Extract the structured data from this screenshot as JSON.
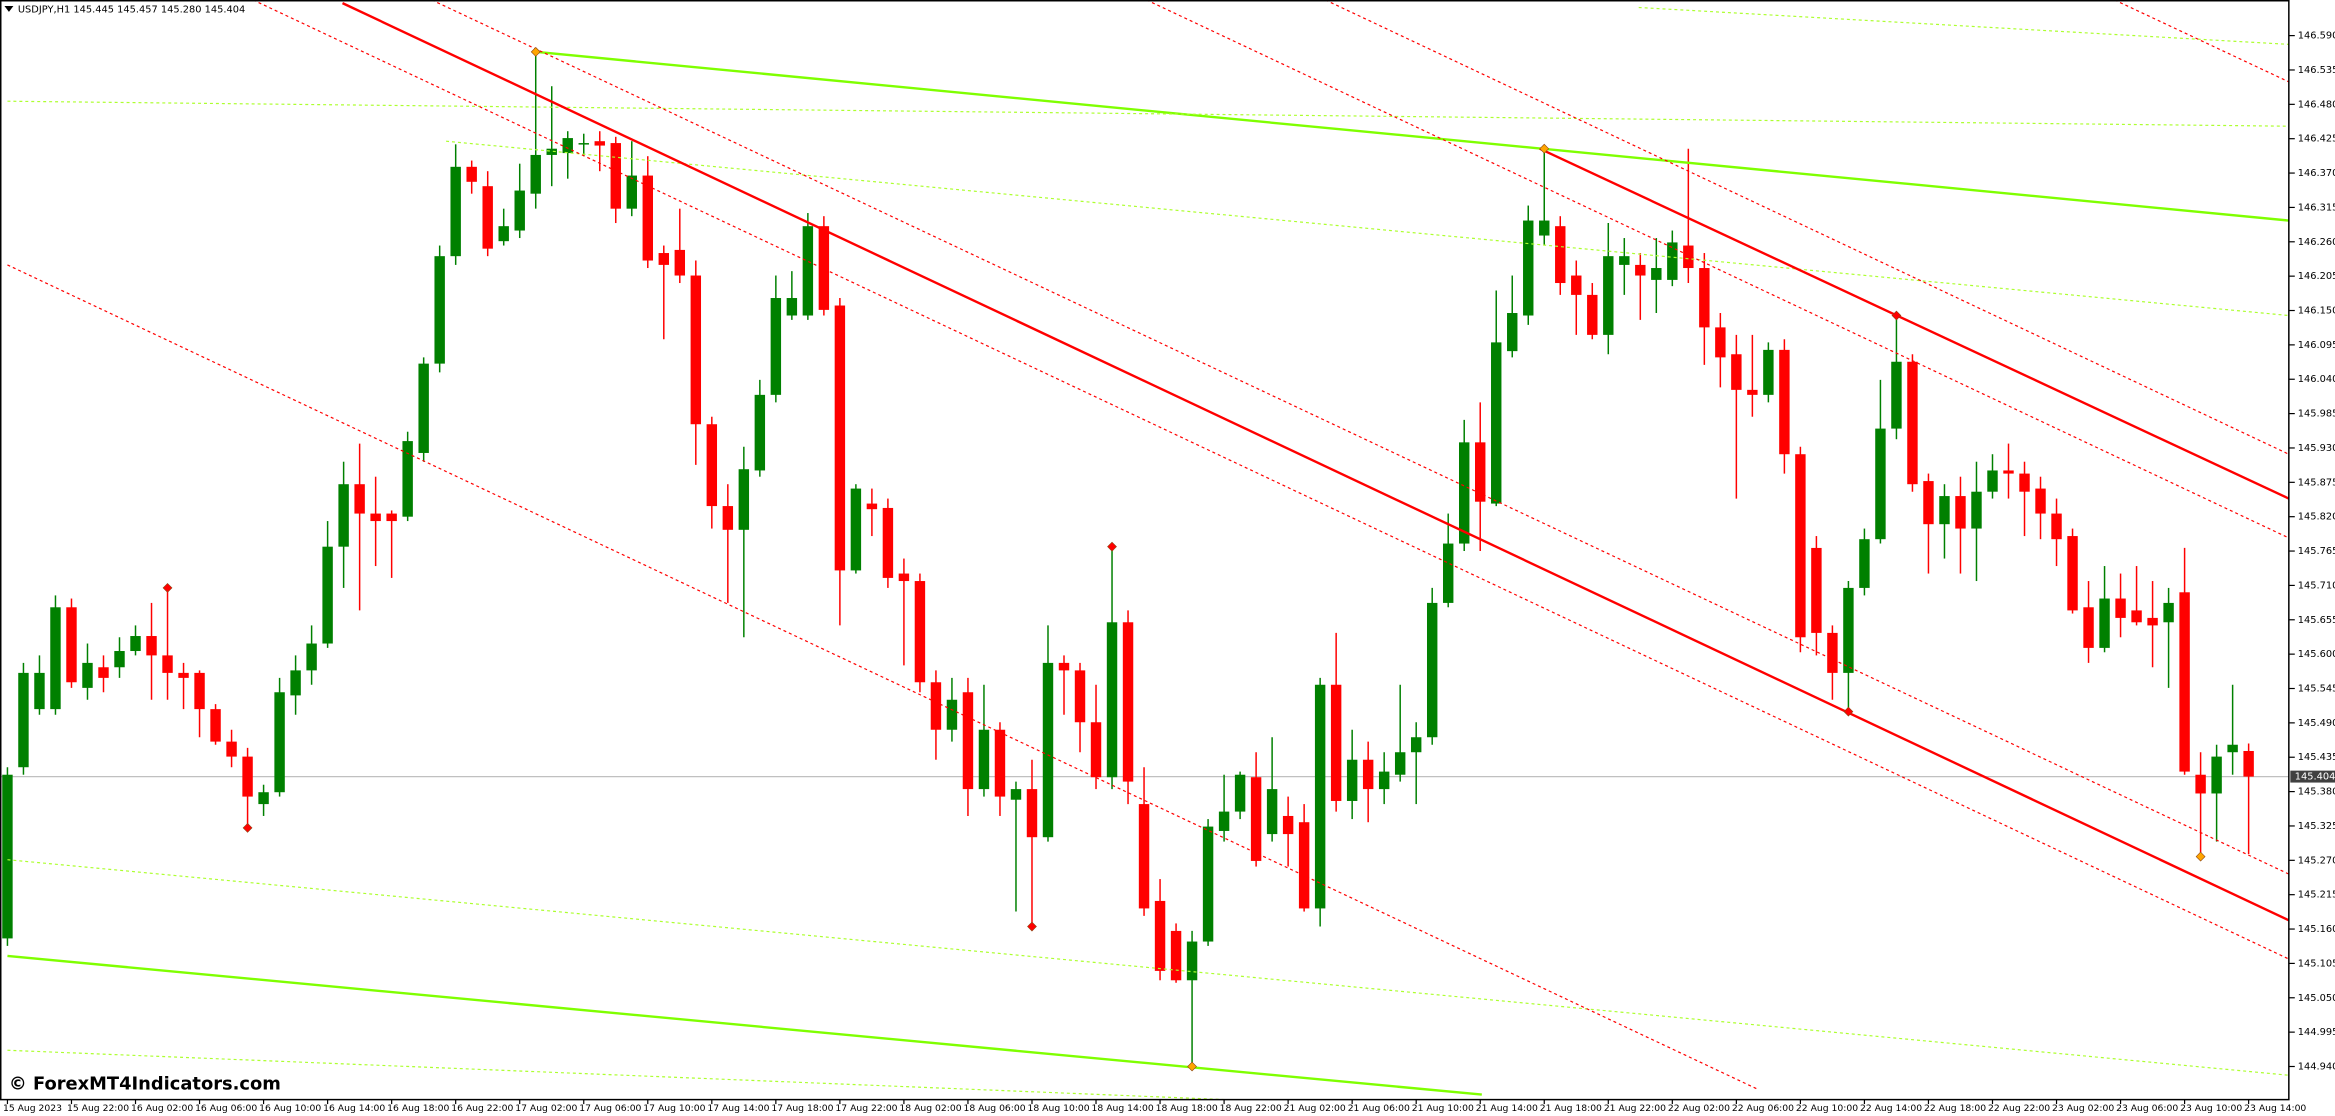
{
  "chart_data": {
    "type": "candlestick",
    "title": "USDJPY,H1 145.445 145.457 145.280 145.404",
    "watermark": "© ForexMT4Indicators.com",
    "up_color": "#008000",
    "down_color": "#ff0000",
    "current_price": 145.404,
    "ylim": [
      144.887,
      146.647
    ],
    "yticks": [
      {
        "value": 146.59,
        "label": "146.590"
      },
      146.535,
      {
        "value": 146.48,
        "label": "146.480"
      },
      146.425,
      {
        "value": 146.37,
        "label": "146.370"
      },
      146.315,
      {
        "value": 146.26,
        "label": "146.260"
      },
      146.205,
      {
        "value": 146.15,
        "label": "146.150"
      },
      146.095,
      {
        "value": 146.04,
        "label": "146.040"
      },
      145.985,
      {
        "value": 145.93,
        "label": "145.930"
      },
      145.875,
      {
        "value": 145.82,
        "label": "145.820"
      },
      145.765,
      {
        "value": 145.71,
        "label": "145.710"
      },
      145.655,
      {
        "value": 145.6,
        "label": "145.600"
      },
      145.545,
      {
        "value": 145.49,
        "label": "145.490"
      },
      145.435,
      {
        "value": 145.38,
        "label": "145.380"
      },
      145.325,
      {
        "value": 145.27,
        "label": "145.270"
      },
      145.215,
      {
        "value": 145.16,
        "label": "145.160"
      },
      145.105,
      {
        "value": 145.05,
        "label": "145.050"
      },
      144.995,
      {
        "value": 144.94,
        "label": "144.940"
      }
    ],
    "categories": [
      "15 Aug 2023",
      null,
      null,
      null,
      "15 Aug 22:00",
      null,
      null,
      null,
      "16 Aug 02:00",
      null,
      null,
      null,
      "16 Aug 06:00",
      null,
      null,
      null,
      "16 Aug 10:00",
      null,
      null,
      null,
      "16 Aug 14:00",
      null,
      null,
      null,
      "16 Aug 18:00",
      null,
      null,
      null,
      "16 Aug 22:00",
      null,
      null,
      null,
      "17 Aug 02:00",
      null,
      null,
      null,
      "17 Aug 06:00",
      null,
      null,
      null,
      "17 Aug 10:00",
      null,
      null,
      null,
      "17 Aug 14:00",
      null,
      null,
      null,
      "17 Aug 18:00",
      null,
      null,
      null,
      "17 Aug 22:00",
      null,
      null,
      null,
      "18 Aug 02:00",
      null,
      null,
      null,
      "18 Aug 06:00",
      null,
      null,
      null,
      "18 Aug 10:00",
      null,
      null,
      null,
      "18 Aug 14:00",
      null,
      null,
      null,
      "18 Aug 18:00",
      null,
      null,
      null,
      "18 Aug 22:00",
      null,
      null,
      null,
      "21 Aug 02:00",
      null,
      null,
      null,
      "21 Aug 06:00",
      null,
      null,
      null,
      "21 Aug 10:00",
      null,
      null,
      null,
      "21 Aug 14:00",
      null,
      null,
      null,
      "21 Aug 18:00",
      null,
      null,
      null,
      "21 Aug 22:00",
      null,
      null,
      null,
      "22 Aug 02:00",
      null,
      null,
      null,
      "22 Aug 06:00",
      null,
      null,
      null,
      "22 Aug 10:00",
      null,
      null,
      null,
      "22 Aug 14:00",
      null,
      null,
      null,
      "22 Aug 18:00",
      null,
      null,
      null,
      "22 Aug 22:00",
      null,
      null,
      null,
      "23 Aug 02:00",
      null,
      null,
      null,
      "23 Aug 06:00",
      null,
      null,
      null,
      "23 Aug 10:00",
      null,
      null,
      null,
      "23 Aug 14:00"
    ],
    "ohlc": [
      [
        145.145,
        145.419,
        145.133,
        145.407
      ],
      [
        145.419,
        145.586,
        145.407,
        145.57
      ],
      [
        145.512,
        145.598,
        145.503,
        145.57
      ],
      [
        145.512,
        145.694,
        145.503,
        145.675
      ],
      [
        145.675,
        145.689,
        145.546,
        145.555
      ],
      [
        145.546,
        145.617,
        145.527,
        145.586
      ],
      [
        145.579,
        145.598,
        145.539,
        145.562
      ],
      [
        145.579,
        145.627,
        145.562,
        145.605
      ],
      [
        145.605,
        145.646,
        145.598,
        145.629
      ],
      [
        145.629,
        145.682,
        145.527,
        145.598
      ],
      [
        145.598,
        145.706,
        145.527,
        145.57
      ],
      [
        145.57,
        145.586,
        145.512,
        145.562
      ],
      [
        145.57,
        145.574,
        145.467,
        145.512
      ],
      [
        145.512,
        145.52,
        145.455,
        145.46
      ],
      [
        145.46,
        145.479,
        145.419,
        145.436
      ],
      [
        145.436,
        145.45,
        145.322,
        145.372
      ],
      [
        145.36,
        145.391,
        145.341,
        145.379
      ],
      [
        145.379,
        145.562,
        145.372,
        145.539
      ],
      [
        145.534,
        145.598,
        145.503,
        145.574
      ],
      [
        145.574,
        145.646,
        145.551,
        145.617
      ],
      [
        145.617,
        145.813,
        145.61,
        145.772
      ],
      [
        145.772,
        145.908,
        145.706,
        145.872
      ],
      [
        145.872,
        145.937,
        145.67,
        145.825
      ],
      [
        145.825,
        145.884,
        145.741,
        145.813
      ],
      [
        145.825,
        145.83,
        145.722,
        145.813
      ],
      [
        145.82,
        145.956,
        145.813,
        145.941
      ],
      [
        145.922,
        146.075,
        145.908,
        146.065
      ],
      [
        146.065,
        146.254,
        146.051,
        146.237
      ],
      [
        146.237,
        146.416,
        146.223,
        146.38
      ],
      [
        146.38,
        146.39,
        146.337,
        146.356
      ],
      [
        146.349,
        146.373,
        146.237,
        146.249
      ],
      [
        146.261,
        146.313,
        146.254,
        146.285
      ],
      [
        146.278,
        146.385,
        146.266,
        146.342
      ],
      [
        146.337,
        146.564,
        146.313,
        146.399
      ],
      [
        146.399,
        146.509,
        146.349,
        146.409
      ],
      [
        146.402,
        146.437,
        146.361,
        146.426
      ],
      [
        146.418,
        146.433,
        146.397,
        146.418
      ],
      [
        146.421,
        146.437,
        146.373,
        146.414
      ],
      [
        146.418,
        146.428,
        146.29,
        146.313
      ],
      [
        146.313,
        146.421,
        146.301,
        146.366
      ],
      [
        146.366,
        146.397,
        146.218,
        146.23
      ],
      [
        146.242,
        146.254,
        146.104,
        146.223
      ],
      [
        146.247,
        146.313,
        146.194,
        146.206
      ],
      [
        146.206,
        146.23,
        145.903,
        145.968
      ],
      [
        145.968,
        145.98,
        145.801,
        145.837
      ],
      [
        145.837,
        145.872,
        145.682,
        145.799
      ],
      [
        145.799,
        145.932,
        145.627,
        145.896
      ],
      [
        145.894,
        146.039,
        145.884,
        146.015
      ],
      [
        146.015,
        146.206,
        146.003,
        146.17
      ],
      [
        146.142,
        146.213,
        146.135,
        146.17
      ],
      [
        146.142,
        146.306,
        146.135,
        146.285
      ],
      [
        146.285,
        146.301,
        146.142,
        146.151
      ],
      [
        146.158,
        146.17,
        145.646,
        145.734
      ],
      [
        145.734,
        145.872,
        145.729,
        145.865
      ],
      [
        145.841,
        145.865,
        145.789,
        145.832
      ],
      [
        145.834,
        145.849,
        145.706,
        145.722
      ],
      [
        145.729,
        145.753,
        145.582,
        145.717
      ],
      [
        145.717,
        145.729,
        145.539,
        145.555
      ],
      [
        145.555,
        145.574,
        145.431,
        145.479
      ],
      [
        145.479,
        145.562,
        145.46,
        145.527
      ],
      [
        145.539,
        145.562,
        145.341,
        145.384
      ],
      [
        145.384,
        145.551,
        145.372,
        145.479
      ],
      [
        145.479,
        145.491,
        145.341,
        145.372
      ],
      [
        145.367,
        145.396,
        145.188,
        145.384
      ],
      [
        145.384,
        145.431,
        145.164,
        145.307
      ],
      [
        145.307,
        145.646,
        145.3,
        145.586
      ],
      [
        145.586,
        145.598,
        145.503,
        145.574
      ],
      [
        145.574,
        145.586,
        145.443,
        145.491
      ],
      [
        145.491,
        145.551,
        145.384,
        145.403
      ],
      [
        145.403,
        145.772,
        145.384,
        145.651
      ],
      [
        145.651,
        145.67,
        145.36,
        145.396
      ],
      [
        145.36,
        145.419,
        145.181,
        145.193
      ],
      [
        145.205,
        145.24,
        145.078,
        145.093
      ],
      [
        145.157,
        145.169,
        145.074,
        145.078
      ],
      [
        145.078,
        145.157,
        144.94,
        145.14
      ],
      [
        145.14,
        145.336,
        145.133,
        145.324
      ],
      [
        145.317,
        145.407,
        145.3,
        145.348
      ],
      [
        145.348,
        145.412,
        145.336,
        145.407
      ],
      [
        145.403,
        145.443,
        145.26,
        145.269
      ],
      [
        145.312,
        145.467,
        145.3,
        145.384
      ],
      [
        145.341,
        145.372,
        145.26,
        145.312
      ],
      [
        145.331,
        145.36,
        145.188,
        145.193
      ],
      [
        145.193,
        145.562,
        145.164,
        145.551
      ],
      [
        145.551,
        145.634,
        145.348,
        145.365
      ],
      [
        145.365,
        145.479,
        145.336,
        145.431
      ],
      [
        145.431,
        145.46,
        145.331,
        145.384
      ],
      [
        145.384,
        145.443,
        145.36,
        145.412
      ],
      [
        145.407,
        145.551,
        145.396,
        145.443
      ],
      [
        145.443,
        145.491,
        145.36,
        145.467
      ],
      [
        145.467,
        145.706,
        145.455,
        145.682
      ],
      [
        145.682,
        145.825,
        145.675,
        145.777
      ],
      [
        145.777,
        145.975,
        145.765,
        145.939
      ],
      [
        145.939,
        146.003,
        145.765,
        145.844
      ],
      [
        145.841,
        146.182,
        145.837,
        146.099
      ],
      [
        146.085,
        146.206,
        146.075,
        146.146
      ],
      [
        146.142,
        146.318,
        146.127,
        146.294
      ],
      [
        146.27,
        146.409,
        146.254,
        146.294
      ],
      [
        146.285,
        146.301,
        146.175,
        146.194
      ],
      [
        146.206,
        146.23,
        146.111,
        146.175
      ],
      [
        146.175,
        146.194,
        146.104,
        146.111
      ],
      [
        146.111,
        146.29,
        146.08,
        146.237
      ],
      [
        146.223,
        146.266,
        146.175,
        146.237
      ],
      [
        146.223,
        146.242,
        146.135,
        146.206
      ],
      [
        146.199,
        146.266,
        146.146,
        146.218
      ],
      [
        146.199,
        146.278,
        146.189,
        146.259
      ],
      [
        146.254,
        146.409,
        146.194,
        146.218
      ],
      [
        146.218,
        146.242,
        146.063,
        146.123
      ],
      [
        146.123,
        146.146,
        146.027,
        146.075
      ],
      [
        146.08,
        146.111,
        145.849,
        146.023
      ],
      [
        146.023,
        146.111,
        145.98,
        146.015
      ],
      [
        146.015,
        146.099,
        146.003,
        146.087
      ],
      [
        146.087,
        146.104,
        145.889,
        145.92
      ],
      [
        145.92,
        145.932,
        145.603,
        145.627
      ],
      [
        145.77,
        145.789,
        145.598,
        145.634
      ],
      [
        145.634,
        145.646,
        145.527,
        145.57
      ],
      [
        145.57,
        145.717,
        145.508,
        145.706
      ],
      [
        145.706,
        145.801,
        145.694,
        145.784
      ],
      [
        145.784,
        146.039,
        145.777,
        145.961
      ],
      [
        145.961,
        146.142,
        145.944,
        146.068
      ],
      [
        146.068,
        146.08,
        145.86,
        145.872
      ],
      [
        145.877,
        145.889,
        145.729,
        145.808
      ],
      [
        145.808,
        145.872,
        145.753,
        145.853
      ],
      [
        145.853,
        145.884,
        145.729,
        145.801
      ],
      [
        145.801,
        145.908,
        145.717,
        145.86
      ],
      [
        145.86,
        145.92,
        145.849,
        145.894
      ],
      [
        145.894,
        145.937,
        145.849,
        145.889
      ],
      [
        145.889,
        145.908,
        145.789,
        145.86
      ],
      [
        145.865,
        145.884,
        145.784,
        145.825
      ],
      [
        145.825,
        145.849,
        145.741,
        145.784
      ],
      [
        145.789,
        145.801,
        145.665,
        145.67
      ],
      [
        145.675,
        145.717,
        145.586,
        145.61
      ],
      [
        145.61,
        145.741,
        145.603,
        145.689
      ],
      [
        145.689,
        145.729,
        145.627,
        145.658
      ],
      [
        145.67,
        145.741,
        145.646,
        145.651
      ],
      [
        145.658,
        145.717,
        145.579,
        145.646
      ],
      [
        145.651,
        145.706,
        145.546,
        145.682
      ],
      [
        145.699,
        145.77,
        145.407,
        145.412
      ],
      [
        145.407,
        145.443,
        145.276,
        145.377
      ],
      [
        145.377,
        145.455,
        145.3,
        145.436
      ],
      [
        145.443,
        145.551,
        145.407,
        145.455
      ],
      [
        145.445,
        145.457,
        145.28,
        145.404
      ]
    ],
    "lines": [
      {
        "color": "#7fff00",
        "style": "solid",
        "points": [
          [
            33,
            146.564
          ],
          [
            142.51,
            146.294
          ]
        ]
      },
      {
        "color": "#7fff00",
        "style": "solid",
        "points": [
          [
            0,
            145.117
          ],
          [
            92.1,
            144.895
          ]
        ]
      },
      {
        "color": "#adff2f",
        "style": "dotted",
        "points": [
          [
            0,
            146.485
          ],
          [
            142.51,
            146.445
          ]
        ]
      },
      {
        "color": "#adff2f",
        "style": "dotted",
        "points": [
          [
            27.4,
            146.421
          ],
          [
            142.51,
            146.142
          ]
        ]
      },
      {
        "color": "#adff2f",
        "style": "dotted",
        "points": [
          [
            0,
            145.271
          ],
          [
            142.51,
            144.926
          ]
        ]
      },
      {
        "color": "#adff2f",
        "style": "dotted",
        "points": [
          [
            0,
            144.966
          ],
          [
            92.5,
            144.87
          ]
        ]
      },
      {
        "color": "#adff2f",
        "style": "dotted",
        "points": [
          [
            101.9,
            146.635
          ],
          [
            142.51,
            146.576
          ]
        ]
      },
      {
        "color": "#ff0000",
        "style": "solid",
        "points": [
          [
            20.93,
            146.642
          ],
          [
            142.51,
            145.174
          ]
        ]
      },
      {
        "color": "#ff0000",
        "style": "solid",
        "points": [
          [
            95.72,
            146.409
          ],
          [
            142.51,
            145.849
          ]
        ]
      },
      {
        "color": "#ff0000",
        "style": "dotted",
        "points": [
          [
            15.35,
            146.647
          ],
          [
            142.51,
            145.112
          ]
        ]
      },
      {
        "color": "#ff0000",
        "style": "dotted",
        "points": [
          [
            26.51,
            146.647
          ],
          [
            142.51,
            145.248
          ]
        ]
      },
      {
        "color": "#ff0000",
        "style": "dotted",
        "points": [
          [
            0,
            146.223
          ],
          [
            109.3,
            144.904
          ]
        ]
      },
      {
        "color": "#ff0000",
        "style": "dotted",
        "points": [
          [
            71.16,
            146.647
          ],
          [
            142.51,
            145.786
          ]
        ]
      },
      {
        "color": "#ff0000",
        "style": "dotted",
        "points": [
          [
            82.33,
            146.647
          ],
          [
            142.51,
            145.92
          ]
        ]
      },
      {
        "color": "#ff0000",
        "style": "dotted",
        "points": [
          [
            131.63,
            146.647
          ],
          [
            142.51,
            146.516
          ]
        ]
      }
    ],
    "markers": [
      {
        "index": 10,
        "value": 145.706,
        "color": "#ff0000"
      },
      {
        "index": 15,
        "value": 145.322,
        "color": "#ff0000"
      },
      {
        "index": 33,
        "value": 146.564,
        "color": "#ffa500"
      },
      {
        "index": 64,
        "value": 145.164,
        "color": "#ff0000"
      },
      {
        "index": 69,
        "value": 145.772,
        "color": "#ff0000"
      },
      {
        "index": 74,
        "value": 144.94,
        "color": "#ffa500"
      },
      {
        "index": 96,
        "value": 146.409,
        "color": "#ffa500"
      },
      {
        "index": 115,
        "value": 145.508,
        "color": "#ff0000"
      },
      {
        "index": 118,
        "value": 146.142,
        "color": "#ff0000"
      },
      {
        "index": 137,
        "value": 145.276,
        "color": "#ffa500"
      }
    ]
  }
}
